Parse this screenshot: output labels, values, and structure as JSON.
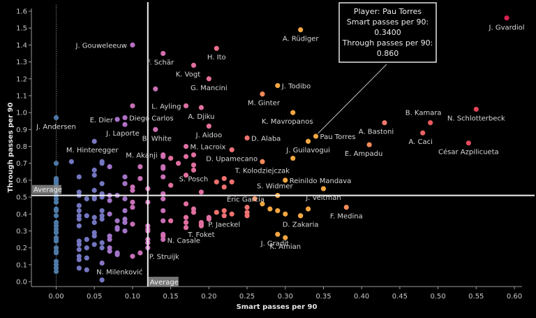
{
  "chart_data": {
    "type": "scatter",
    "title": "",
    "xlabel": "Smart passes per 90",
    "ylabel": "Through passes per 90",
    "xlim": [
      -0.035,
      0.615
    ],
    "ylim": [
      -0.015,
      1.65
    ],
    "xticks": [
      "0.00",
      "0.05",
      "0.10",
      "0.15",
      "0.20",
      "0.25",
      "0.30",
      "0.35",
      "0.40",
      "0.45",
      "0.50",
      "0.55",
      "0.60"
    ],
    "yticks": [
      "0.0",
      "0.1",
      "0.2",
      "0.3",
      "0.4",
      "0.5",
      "0.6",
      "0.7",
      "0.8",
      "0.9",
      "1.0",
      "1.1",
      "1.2",
      "1.3",
      "1.4",
      "1.5",
      "1.6"
    ],
    "grid": false,
    "reference_lines": {
      "x_average": {
        "value": 0.12,
        "label": "Average"
      },
      "y_average": {
        "value": 0.51,
        "label": "Average"
      },
      "x_zero_dotted": 0.0
    },
    "color_scale": {
      "low": "#4e79a7",
      "mid_low": "#9b72c9",
      "mid": "#d46fae",
      "mid_high": "#f2786e",
      "high_orange": "#f5a742",
      "high": "#d6224e"
    },
    "tooltip": {
      "line1": "Player: Pau Torres",
      "line2": "Smart passes per 90:",
      "line3": "0.3400",
      "line4": "Through passes per 90:",
      "line5": "0.860",
      "target": {
        "x": 0.34,
        "y": 0.86
      }
    },
    "labeled_points": [
      {
        "name": "J. Gvardiol",
        "x": 0.59,
        "y": 1.56,
        "color": "#d6224e"
      },
      {
        "name": "A. Rüdiger",
        "x": 0.32,
        "y": 1.49,
        "color": "#f5a742"
      },
      {
        "name": "J. Gouweleeuw",
        "x": 0.1,
        "y": 1.4,
        "color": "#b86fc4"
      },
      {
        "name": "F. Schär",
        "x": 0.14,
        "y": 1.35,
        "color": "#d46fae"
      },
      {
        "name": "H. Ito",
        "x": 0.21,
        "y": 1.38,
        "color": "#ea6f8c"
      },
      {
        "name": "K. Vogt",
        "x": 0.18,
        "y": 1.28,
        "color": "#e06fa0"
      },
      {
        "name": "G. Mancini",
        "x": 0.2,
        "y": 1.2,
        "color": "#e6709a"
      },
      {
        "name": "J. Todibo",
        "x": 0.29,
        "y": 1.16,
        "color": "#f5a742"
      },
      {
        "name": "M. Ginter",
        "x": 0.27,
        "y": 1.11,
        "color": "#f58a5a"
      },
      {
        "name": "L. Ayling",
        "x": 0.17,
        "y": 1.04,
        "color": "#dc6fa4"
      },
      {
        "name": "A. Djiku",
        "x": 0.19,
        "y": 1.03,
        "color": "#e0709f"
      },
      {
        "name": "K. Mavropanos",
        "x": 0.31,
        "y": 1.0,
        "color": "#f5a742"
      },
      {
        "name": "E. Dier",
        "x": 0.08,
        "y": 0.96,
        "color": "#a874c8"
      },
      {
        "name": "Diego Carlos",
        "x": 0.09,
        "y": 0.97,
        "color": "#b070c6"
      },
      {
        "name": "J. Laporte",
        "x": 0.09,
        "y": 0.93,
        "color": "#b070c6"
      },
      {
        "name": "J. Andersen",
        "x": 0.0,
        "y": 0.97,
        "color": "#4e79a7"
      },
      {
        "name": "B. White",
        "x": 0.13,
        "y": 0.9,
        "color": "#cc6fb2"
      },
      {
        "name": "J. Aidoo",
        "x": 0.2,
        "y": 0.92,
        "color": "#e6709a"
      },
      {
        "name": "D. Alaba",
        "x": 0.25,
        "y": 0.85,
        "color": "#f0726f"
      },
      {
        "name": "Pau Torres",
        "x": 0.34,
        "y": 0.86,
        "color": "#f5a742"
      },
      {
        "name": "J. Guilavogui",
        "x": 0.33,
        "y": 0.83,
        "color": "#f5a742"
      },
      {
        "name": "A. Bastoni",
        "x": 0.43,
        "y": 0.94,
        "color": "#f2786e"
      },
      {
        "name": "B. Kamara",
        "x": 0.49,
        "y": 0.94,
        "color": "#ea5a60"
      },
      {
        "name": "A. Caci",
        "x": 0.48,
        "y": 0.88,
        "color": "#ec6464"
      },
      {
        "name": "N. Schlotterbeck",
        "x": 0.55,
        "y": 1.02,
        "color": "#e2445c"
      },
      {
        "name": "César Azpilicueta",
        "x": 0.54,
        "y": 0.82,
        "color": "#e34a5c"
      },
      {
        "name": "E. Ampadu",
        "x": 0.41,
        "y": 0.81,
        "color": "#f58a5a"
      },
      {
        "name": "M. Hinteregger",
        "x": 0.05,
        "y": 0.83,
        "color": "#7b78c0"
      },
      {
        "name": "M. Lacroix",
        "x": 0.17,
        "y": 0.8,
        "color": "#dc6fa4"
      },
      {
        "name": "M. Akanji",
        "x": 0.14,
        "y": 0.75,
        "color": "#d46fae"
      },
      {
        "name": "D. Upamecano",
        "x": 0.23,
        "y": 0.78,
        "color": "#ee7278"
      },
      {
        "name": "T. Kolodziejczak",
        "x": 0.27,
        "y": 0.71,
        "color": "#f58a5a"
      },
      {
        "name": "Reinildo Mandava",
        "x": 0.3,
        "y": 0.6,
        "color": "#f5a742"
      },
      {
        "name": "S. Posch",
        "x": 0.18,
        "y": 0.66,
        "color": "#e06fa0"
      },
      {
        "name": "S. Widmer",
        "x": 0.29,
        "y": 0.51,
        "color": "#f5a742"
      },
      {
        "name": "J. Veltman",
        "x": 0.35,
        "y": 0.55,
        "color": "#f5a742"
      },
      {
        "name": "Eric García",
        "x": 0.26,
        "y": 0.49,
        "color": "#f58a5a"
      },
      {
        "name": "F. Medina",
        "x": 0.38,
        "y": 0.44,
        "color": "#f58a5a"
      },
      {
        "name": "P. Jaeckel",
        "x": 0.22,
        "y": 0.39,
        "color": "#ee7278"
      },
      {
        "name": "D. Zakaria",
        "x": 0.32,
        "y": 0.39,
        "color": "#f5a742"
      },
      {
        "name": "T. Foket",
        "x": 0.19,
        "y": 0.33,
        "color": "#e0709f"
      },
      {
        "name": "J. Gradit",
        "x": 0.29,
        "y": 0.28,
        "color": "#f5a742"
      },
      {
        "name": "K. Amian",
        "x": 0.3,
        "y": 0.26,
        "color": "#f5a742"
      },
      {
        "name": "N. Casale",
        "x": 0.14,
        "y": 0.27,
        "color": "#d46fae"
      },
      {
        "name": "P. Struijk",
        "x": 0.12,
        "y": 0.2,
        "color": "#c46fb8"
      },
      {
        "name": "N. Milenković",
        "x": 0.06,
        "y": 0.11,
        "color": "#8a74c4"
      }
    ],
    "unlabeled_points": [
      [
        0.13,
        1.14
      ],
      [
        0.1,
        1.04
      ],
      [
        0.0,
        0.7
      ],
      [
        0.0,
        0.61
      ],
      [
        0.0,
        0.6
      ],
      [
        0.0,
        0.59
      ],
      [
        0.0,
        0.58
      ],
      [
        0.0,
        0.56
      ],
      [
        0.0,
        0.53
      ],
      [
        0.0,
        0.51
      ],
      [
        0.0,
        0.49
      ],
      [
        0.0,
        0.47
      ],
      [
        0.0,
        0.43
      ],
      [
        0.0,
        0.42
      ],
      [
        0.0,
        0.39
      ],
      [
        0.0,
        0.35
      ],
      [
        0.0,
        0.33
      ],
      [
        0.0,
        0.31
      ],
      [
        0.0,
        0.29
      ],
      [
        0.0,
        0.26
      ],
      [
        0.0,
        0.25
      ],
      [
        0.0,
        0.24
      ],
      [
        0.0,
        0.2
      ],
      [
        0.0,
        0.18
      ],
      [
        0.0,
        0.17
      ],
      [
        0.0,
        0.12
      ],
      [
        0.0,
        0.1
      ],
      [
        0.0,
        0.08
      ],
      [
        0.0,
        0.06
      ],
      [
        0.02,
        0.71
      ],
      [
        0.03,
        0.62
      ],
      [
        0.03,
        0.53
      ],
      [
        0.03,
        0.51
      ],
      [
        0.03,
        0.45
      ],
      [
        0.03,
        0.42
      ],
      [
        0.03,
        0.39
      ],
      [
        0.03,
        0.37
      ],
      [
        0.03,
        0.33
      ],
      [
        0.03,
        0.24
      ],
      [
        0.03,
        0.22
      ],
      [
        0.03,
        0.19
      ],
      [
        0.03,
        0.15
      ],
      [
        0.03,
        0.13
      ],
      [
        0.03,
        0.08
      ],
      [
        0.04,
        0.49
      ],
      [
        0.04,
        0.39
      ],
      [
        0.04,
        0.25
      ],
      [
        0.04,
        0.2
      ],
      [
        0.04,
        0.14
      ],
      [
        0.04,
        0.07
      ],
      [
        0.05,
        0.66
      ],
      [
        0.05,
        0.63
      ],
      [
        0.05,
        0.54
      ],
      [
        0.05,
        0.5
      ],
      [
        0.05,
        0.49
      ],
      [
        0.05,
        0.38
      ],
      [
        0.05,
        0.35
      ],
      [
        0.05,
        0.29
      ],
      [
        0.05,
        0.27
      ],
      [
        0.05,
        0.22
      ],
      [
        0.06,
        0.71
      ],
      [
        0.06,
        0.7
      ],
      [
        0.06,
        0.58
      ],
      [
        0.06,
        0.52
      ],
      [
        0.06,
        0.5
      ],
      [
        0.06,
        0.42
      ],
      [
        0.06,
        0.39
      ],
      [
        0.06,
        0.37
      ],
      [
        0.06,
        0.23
      ],
      [
        0.06,
        0.2
      ],
      [
        0.06,
        0.01
      ],
      [
        0.07,
        0.68
      ],
      [
        0.07,
        0.51
      ],
      [
        0.07,
        0.48
      ],
      [
        0.07,
        0.4
      ],
      [
        0.07,
        0.27
      ],
      [
        0.07,
        0.25
      ],
      [
        0.07,
        0.2
      ],
      [
        0.07,
        0.18
      ],
      [
        0.08,
        0.51
      ],
      [
        0.08,
        0.36
      ],
      [
        0.08,
        0.32
      ],
      [
        0.08,
        0.31
      ],
      [
        0.08,
        0.17
      ],
      [
        0.08,
        0.16
      ],
      [
        0.09,
        0.62
      ],
      [
        0.09,
        0.58
      ],
      [
        0.09,
        0.49
      ],
      [
        0.09,
        0.42
      ],
      [
        0.09,
        0.37
      ],
      [
        0.09,
        0.35
      ],
      [
        0.09,
        0.3
      ],
      [
        0.1,
        0.56
      ],
      [
        0.1,
        0.54
      ],
      [
        0.1,
        0.47
      ],
      [
        0.1,
        0.44
      ],
      [
        0.1,
        0.34
      ],
      [
        0.1,
        0.15
      ],
      [
        0.11,
        0.68
      ],
      [
        0.11,
        0.61
      ],
      [
        0.11,
        0.17
      ],
      [
        0.12,
        0.55
      ],
      [
        0.12,
        0.47
      ],
      [
        0.12,
        0.33
      ],
      [
        0.12,
        0.31
      ],
      [
        0.12,
        0.3
      ],
      [
        0.12,
        0.25
      ],
      [
        0.12,
        0.23
      ],
      [
        0.14,
        0.74
      ],
      [
        0.14,
        0.68
      ],
      [
        0.14,
        0.67
      ],
      [
        0.14,
        0.62
      ],
      [
        0.14,
        0.52
      ],
      [
        0.14,
        0.49
      ],
      [
        0.14,
        0.42
      ],
      [
        0.14,
        0.36
      ],
      [
        0.14,
        0.28
      ],
      [
        0.14,
        0.25
      ],
      [
        0.15,
        0.73
      ],
      [
        0.15,
        0.57
      ],
      [
        0.15,
        0.36
      ],
      [
        0.16,
        0.7
      ],
      [
        0.17,
        0.74
      ],
      [
        0.17,
        0.63
      ],
      [
        0.17,
        0.46
      ],
      [
        0.17,
        0.38
      ],
      [
        0.17,
        0.35
      ],
      [
        0.17,
        0.32
      ],
      [
        0.18,
        0.75
      ],
      [
        0.18,
        0.69
      ],
      [
        0.18,
        0.43
      ],
      [
        0.18,
        0.41
      ],
      [
        0.19,
        0.53
      ],
      [
        0.19,
        0.35
      ],
      [
        0.19,
        0.34
      ],
      [
        0.2,
        0.37
      ],
      [
        0.2,
        0.38
      ],
      [
        0.21,
        0.59
      ],
      [
        0.21,
        0.41
      ],
      [
        0.22,
        0.61
      ],
      [
        0.22,
        0.42
      ],
      [
        0.22,
        0.56
      ],
      [
        0.23,
        0.59
      ],
      [
        0.23,
        0.4
      ],
      [
        0.25,
        0.44
      ],
      [
        0.25,
        0.41
      ],
      [
        0.25,
        0.39
      ],
      [
        0.27,
        0.46
      ],
      [
        0.28,
        0.43
      ],
      [
        0.29,
        0.42
      ],
      [
        0.3,
        0.4
      ],
      [
        0.32,
        0.39
      ],
      [
        0.33,
        0.43
      ],
      [
        0.31,
        0.73
      ]
    ]
  }
}
